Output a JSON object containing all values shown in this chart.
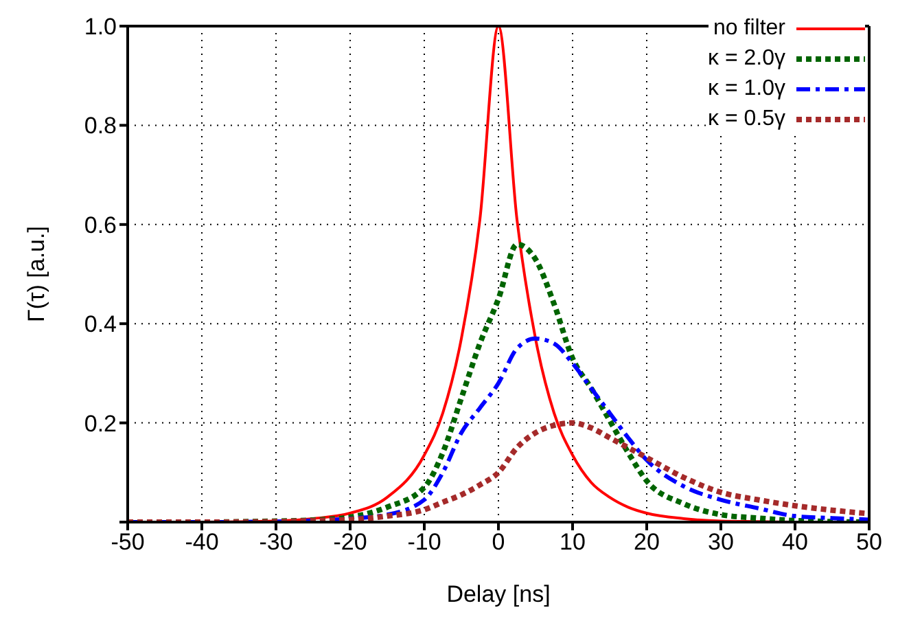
{
  "chart_data": {
    "type": "line",
    "xlabel": "Delay [ns]",
    "ylabel": "Γ(τ) [a.u.]",
    "x": [
      -50,
      -40,
      -30,
      -25,
      -20,
      -15,
      -10,
      -7.5,
      -5,
      -2.5,
      0,
      2.5,
      5,
      7.5,
      10,
      12.5,
      15,
      17.5,
      20,
      25,
      30,
      35,
      40,
      45,
      50
    ],
    "series": [
      {
        "name": "no filter",
        "color": "#ff0000",
        "line_style": "solid",
        "values": [
          0,
          0,
          0.002,
          0.007,
          0.018,
          0.05,
          0.135,
          0.22,
          0.37,
          0.61,
          1.0,
          0.61,
          0.37,
          0.22,
          0.135,
          0.08,
          0.05,
          0.03,
          0.018,
          0.007,
          0.002,
          0.001,
          0,
          null,
          null
        ]
      },
      {
        "name": "κ = 2.0γ",
        "color": "#006400",
        "line_style": "dotted",
        "values": [
          0,
          0,
          0.002,
          0.004,
          0.01,
          0.03,
          0.07,
          0.14,
          0.25,
          0.36,
          0.45,
          0.56,
          0.53,
          0.44,
          0.33,
          0.27,
          0.205,
          0.14,
          0.083,
          0.037,
          0.015,
          0.008,
          0.003,
          0.001,
          0
        ]
      },
      {
        "name": "κ = 1.0γ",
        "color": "#0000ff",
        "line_style": "dashed",
        "values": [
          0,
          0,
          0.001,
          0.003,
          0.007,
          0.015,
          0.045,
          0.1,
          0.18,
          0.23,
          0.28,
          0.35,
          0.37,
          0.36,
          0.32,
          0.27,
          0.22,
          0.17,
          0.125,
          0.072,
          0.045,
          0.028,
          0.012,
          0.008,
          0.005
        ]
      },
      {
        "name": "κ = 0.5γ",
        "color": "#a52a2a",
        "line_style": "dotted",
        "values": [
          0,
          0,
          0.001,
          0.003,
          0.005,
          0.012,
          0.025,
          0.04,
          0.055,
          0.075,
          0.1,
          0.15,
          0.18,
          0.195,
          0.2,
          0.19,
          0.17,
          0.15,
          0.13,
          0.09,
          0.06,
          0.045,
          0.033,
          0.024,
          0.017
        ]
      }
    ],
    "xlim": [
      -50,
      50
    ],
    "xticks": [
      -50,
      -40,
      -30,
      -20,
      -10,
      0,
      10,
      20,
      30,
      40,
      50
    ],
    "ylim": [
      0,
      1
    ],
    "yticks": [
      {
        "value": 0,
        "label": null
      },
      0.2,
      0.4,
      0.6,
      0.8,
      {
        "value": 1,
        "label": "1.0"
      }
    ],
    "grid": true,
    "legend": "top right",
    "marker": "none"
  }
}
